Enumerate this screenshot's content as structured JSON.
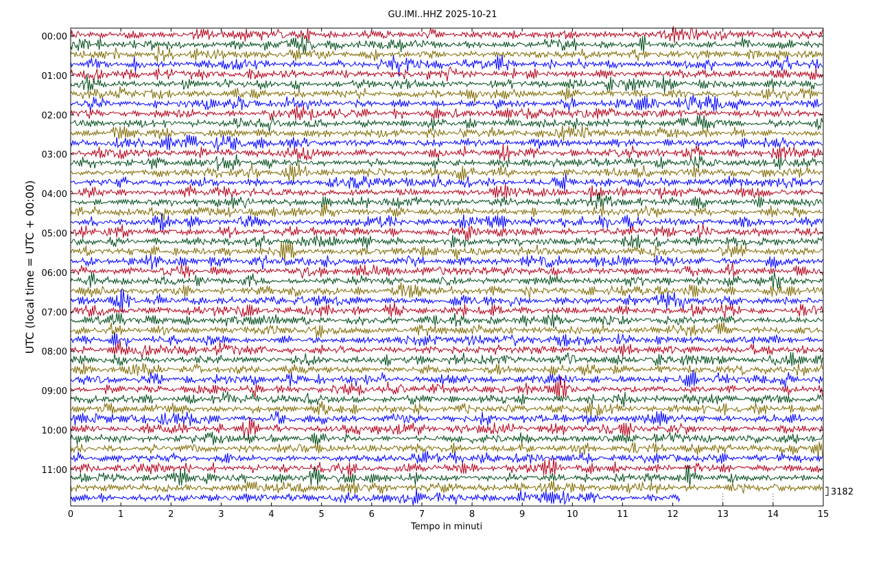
{
  "chart_data": {
    "type": "line",
    "title": "GU.IMI..HHZ 2025-10-21",
    "xlabel": "Tempo in minuti",
    "ylabel": "UTC (local time = UTC + 00:00)",
    "xlim": [
      0,
      15
    ],
    "x_ticks": [
      "0",
      "1",
      "2",
      "3",
      "4",
      "5",
      "6",
      "7",
      "8",
      "9",
      "10",
      "11",
      "12",
      "13",
      "14",
      "15"
    ],
    "y_tick_labels": [
      "00:00",
      "01:00",
      "02:00",
      "03:00",
      "04:00",
      "05:00",
      "06:00",
      "07:00",
      "08:00",
      "09:00",
      "10:00",
      "11:00"
    ],
    "trace_count": 48,
    "trace_minutes": 15,
    "last_trace_end_minute": 12.15,
    "scale_label": "3182",
    "trace_colors": [
      "#b2001a",
      "#004c1a",
      "#7f6a00",
      "#0000ff"
    ],
    "grid": "dotted vertical lines at minutes 13 and 14 below last trace"
  }
}
